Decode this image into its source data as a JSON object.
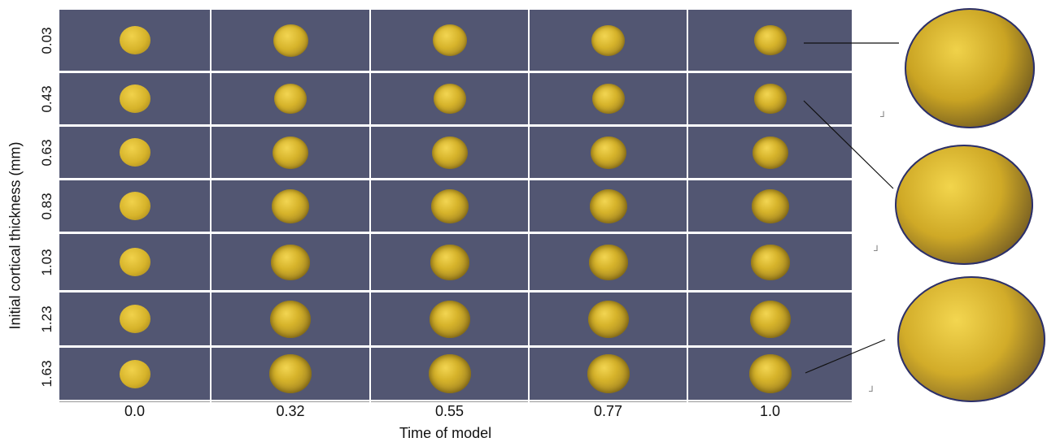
{
  "figure": {
    "y_axis_label": "Initial cortical thickness (mm)",
    "x_axis_label": "Time of model",
    "thickness_rows": [
      "0.03",
      "0.43",
      "0.63",
      "0.83",
      "1.03",
      "1.23",
      "1.63"
    ],
    "time_columns": [
      "0.0",
      "0.32",
      "0.55",
      "0.77",
      "1.0"
    ],
    "colors": {
      "panel_background": "#525672",
      "surface": "#d6b32a",
      "grid_lines": "#ffffff",
      "mesh_edge": "#2a2f6e"
    },
    "zoom_insets": [
      {
        "row": "0.03",
        "time": "1.0"
      },
      {
        "row": "0.43",
        "time": "1.0"
      },
      {
        "row": "1.63",
        "time": "1.0"
      }
    ]
  }
}
